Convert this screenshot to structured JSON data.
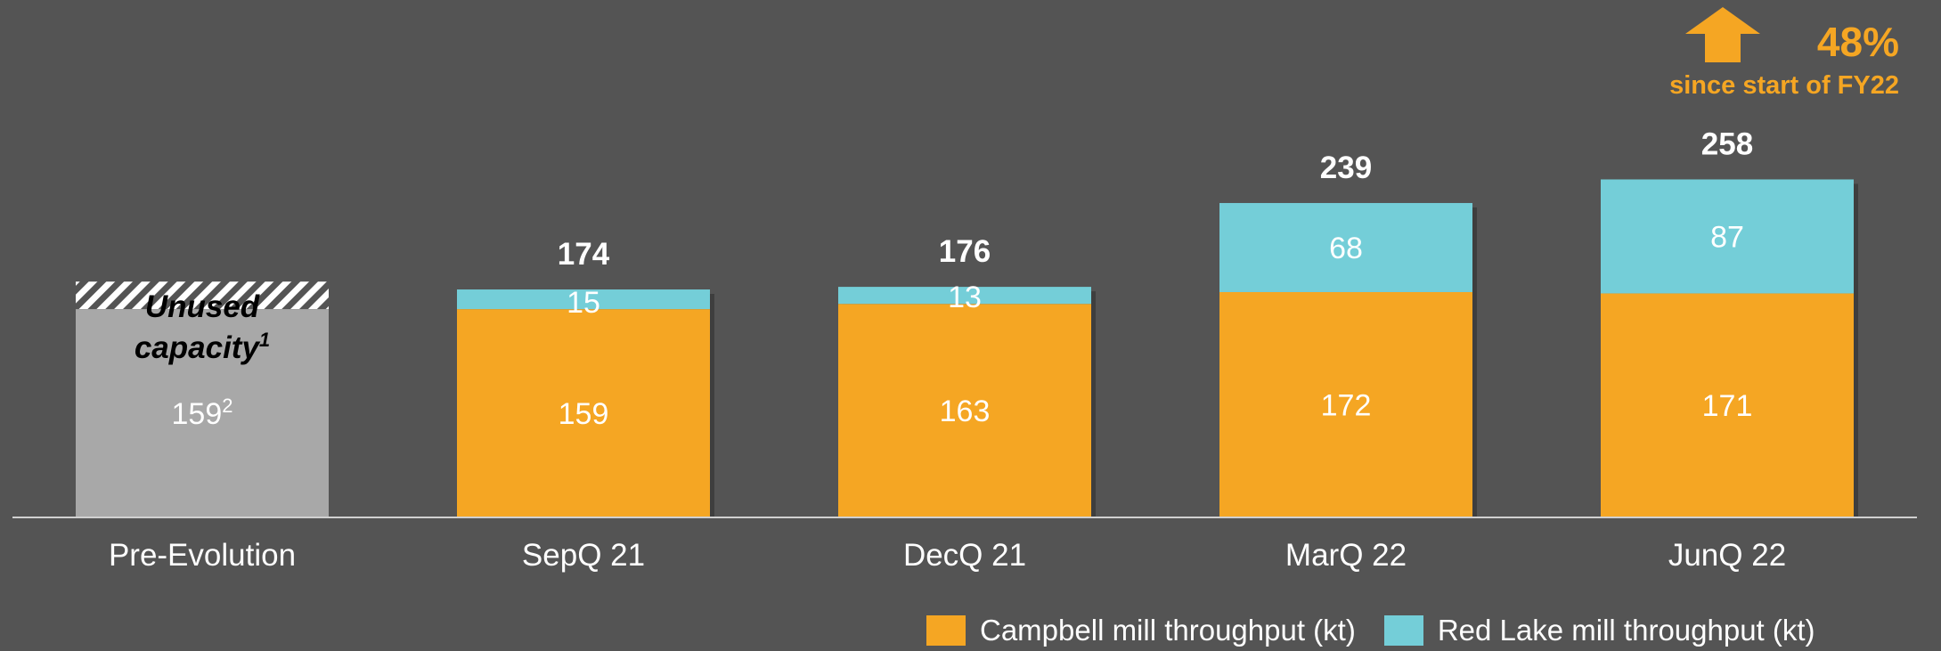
{
  "colors": {
    "background": "#545454",
    "campbell": "#f5a623",
    "red_lake": "#74ced8",
    "pre_evolution": "#a8a8a8",
    "hatch": "#ffffff",
    "text": "#ffffff",
    "accent": "#f5a623"
  },
  "callout": {
    "icon": "up-arrow-icon",
    "percent": "48%",
    "subtitle": "since start of FY22"
  },
  "chart_data": {
    "type": "bar",
    "stacked": true,
    "categories": [
      "Pre-Evolution",
      "SepQ 21",
      "DecQ 21",
      "MarQ 22",
      "JunQ 22"
    ],
    "series": [
      {
        "name": "Campbell mill throughput (kt)",
        "values": [
          null,
          159,
          163,
          172,
          171
        ]
      },
      {
        "name": "Red Lake mill throughput (kt)",
        "values": [
          null,
          15,
          13,
          68,
          87
        ]
      }
    ],
    "totals": [
      null,
      "174",
      "176",
      "239",
      "258"
    ],
    "pre_evolution": {
      "value": 159,
      "label": "159",
      "footnote": "2",
      "unused_capacity_total": 180,
      "unused_label_line1": "Unused",
      "unused_label_line2": "capacity",
      "unused_footnote": "1"
    },
    "ylim": [
      0,
      290
    ],
    "grid": false,
    "legend_position": "bottom-right"
  },
  "legend": [
    {
      "label": "Campbell mill throughput (kt)",
      "color": "#f5a623"
    },
    {
      "label": "Red Lake mill throughput (kt)",
      "color": "#74ced8"
    }
  ]
}
